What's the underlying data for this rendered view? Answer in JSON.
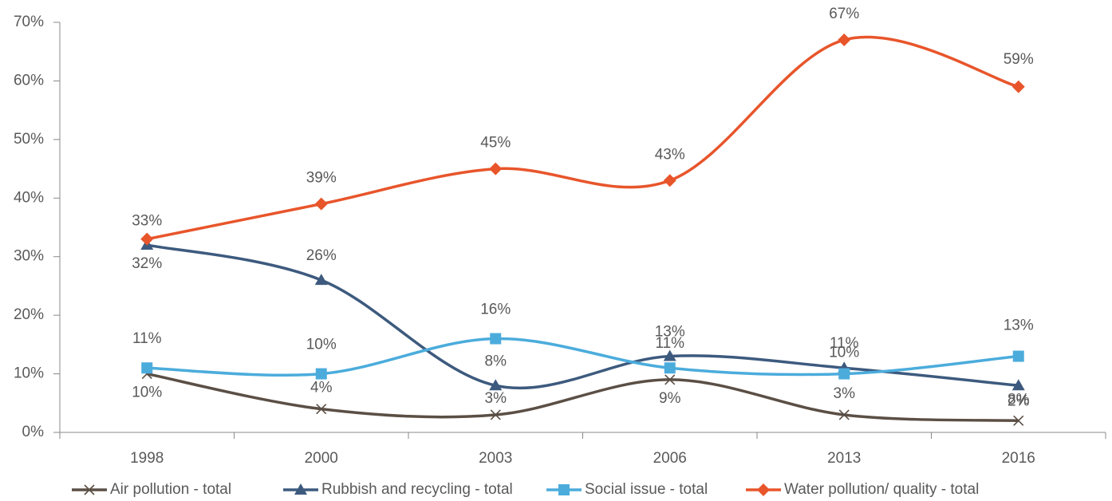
{
  "chart_data": {
    "type": "line",
    "categories": [
      "1998",
      "2000",
      "2003",
      "2006",
      "2013",
      "2016"
    ],
    "series": [
      {
        "name": "Air pollution - total",
        "color": "#5b4f45",
        "marker": "x",
        "values": [
          10,
          4,
          3,
          9,
          3,
          2
        ],
        "value_labels": [
          "10%",
          "4%",
          "3%",
          "9%",
          "3%",
          "2%"
        ]
      },
      {
        "name": "Rubbish and recycling - total",
        "color": "#3d5a7e",
        "marker": "triangle",
        "values": [
          32,
          26,
          8,
          13,
          11,
          8
        ],
        "value_labels": [
          "32%",
          "26%",
          "8%",
          "13%",
          "11%",
          "8%"
        ]
      },
      {
        "name": "Social issue - total",
        "color": "#4bacdc",
        "marker": "square",
        "values": [
          11,
          10,
          16,
          11,
          10,
          13
        ],
        "value_labels": [
          "11%",
          "10%",
          "16%",
          "11%",
          "10%",
          "13%"
        ]
      },
      {
        "name": "Water pollution/ quality - total",
        "color": "#e8552b",
        "marker": "diamond",
        "values": [
          33,
          39,
          45,
          43,
          67,
          59
        ],
        "value_labels": [
          "33%",
          "39%",
          "45%",
          "43%",
          "67%",
          "59%"
        ]
      }
    ],
    "ylim": [
      0,
      70
    ],
    "yticks": [
      {
        "value": 0,
        "label": "0%"
      },
      {
        "value": 10,
        "label": "10%"
      },
      {
        "value": 20,
        "label": "20%"
      },
      {
        "value": 30,
        "label": "30%"
      },
      {
        "value": 40,
        "label": "40%"
      },
      {
        "value": 50,
        "label": "50%"
      },
      {
        "value": 60,
        "label": "60%"
      },
      {
        "value": 70,
        "label": "70%"
      }
    ],
    "smooth": true,
    "legend": "bottom"
  }
}
